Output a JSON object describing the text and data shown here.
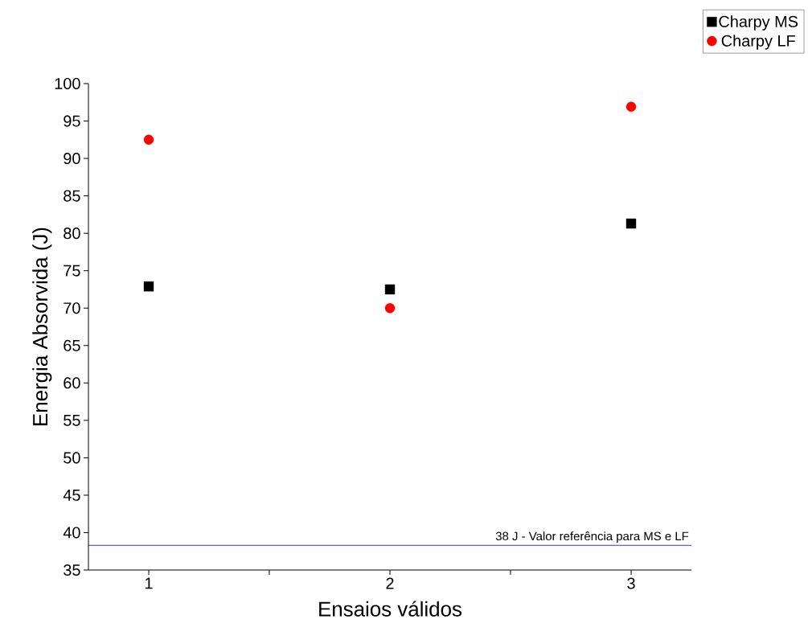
{
  "chart_data": {
    "type": "scatter",
    "xlabel": "Ensaios válidos",
    "ylabel": "Energia Absorvida (J)",
    "x": [
      1,
      2,
      3
    ],
    "series": [
      {
        "name": "Charpy MS",
        "color": "#000000",
        "marker": "square",
        "values": [
          72.9,
          72.5,
          81.3
        ]
      },
      {
        "name": "Charpy LF",
        "color": "#ff0000",
        "marker": "circle",
        "values": [
          92.5,
          70.0,
          96.9
        ]
      }
    ],
    "xlim": [
      0.75,
      3.25
    ],
    "xticks": [
      1,
      {
        "value": 1.5,
        "label": null
      },
      2,
      {
        "value": 2.5,
        "label": null
      },
      3
    ],
    "ylim": [
      35,
      100
    ],
    "yticks": [
      35,
      40,
      45,
      50,
      55,
      60,
      65,
      70,
      75,
      80,
      85,
      90,
      95,
      100
    ],
    "ref_lines": [
      {
        "axis": "y",
        "value": 38.3,
        "label": "38 J - Valor referência para MS e LF",
        "color": "#0000ff"
      }
    ],
    "legend": "top right",
    "grid": false
  }
}
